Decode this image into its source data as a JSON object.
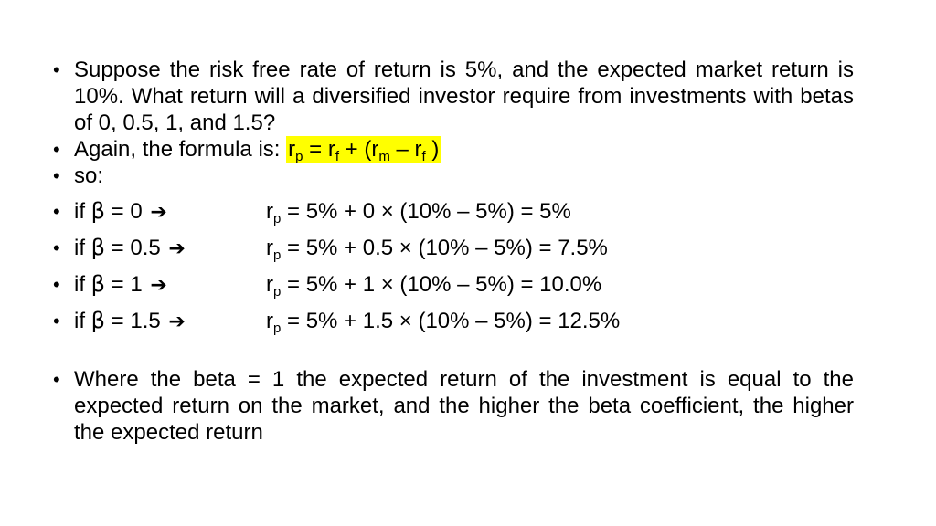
{
  "bullets": {
    "question": "Suppose the risk free rate of return is 5%, and the expected market return is 10%. What return will a diversified investor require from investments with betas of 0, 0.5, 1, and 1.5?",
    "formula_intro": "Again, the formula is: ",
    "formula": {
      "r": "r",
      "p": "p",
      "eq": " = r",
      "f1": "f",
      "plus": " + (r",
      "m": "m",
      "minus": " – r",
      "f2": "f",
      "close": " )"
    },
    "so": "so:",
    "cases": [
      {
        "if": "if ",
        "beta": "β",
        "cond": " = 0 ",
        "arrow": "➔",
        "r": "r",
        "p": "p",
        "expr": " = 5% + 0 × (10% – 5%) = 5%"
      },
      {
        "if": "if ",
        "beta": "β",
        "cond": " = 0.5 ",
        "arrow": "➔",
        "r": "r",
        "p": "p",
        "expr": " = 5% + 0.5 × (10% – 5%) = 7.5%"
      },
      {
        "if": "if ",
        "beta": "β",
        "cond": " = 1 ",
        "arrow": "➔",
        "r": "r",
        "p": "p",
        "expr": " = 5% + 1 × (10% – 5%) = 10.0%"
      },
      {
        "if": "if ",
        "beta": "β",
        "cond": " = 1.5 ",
        "arrow": "➔",
        "r": "r",
        "p": "p",
        "expr": " = 5% + 1.5 × (10% – 5%) = 12.5%"
      }
    ],
    "conclusion": "Where the beta = 1 the expected return of the investment is equal to the expected return on the market, and the higher the beta coefficient, the higher the expected return"
  },
  "colors": {
    "highlight": "#ffff00",
    "text": "#000000",
    "background": "#ffffff"
  },
  "icons": {
    "bullet": "bullet-dot-icon",
    "arrow": "right-arrow-icon"
  }
}
